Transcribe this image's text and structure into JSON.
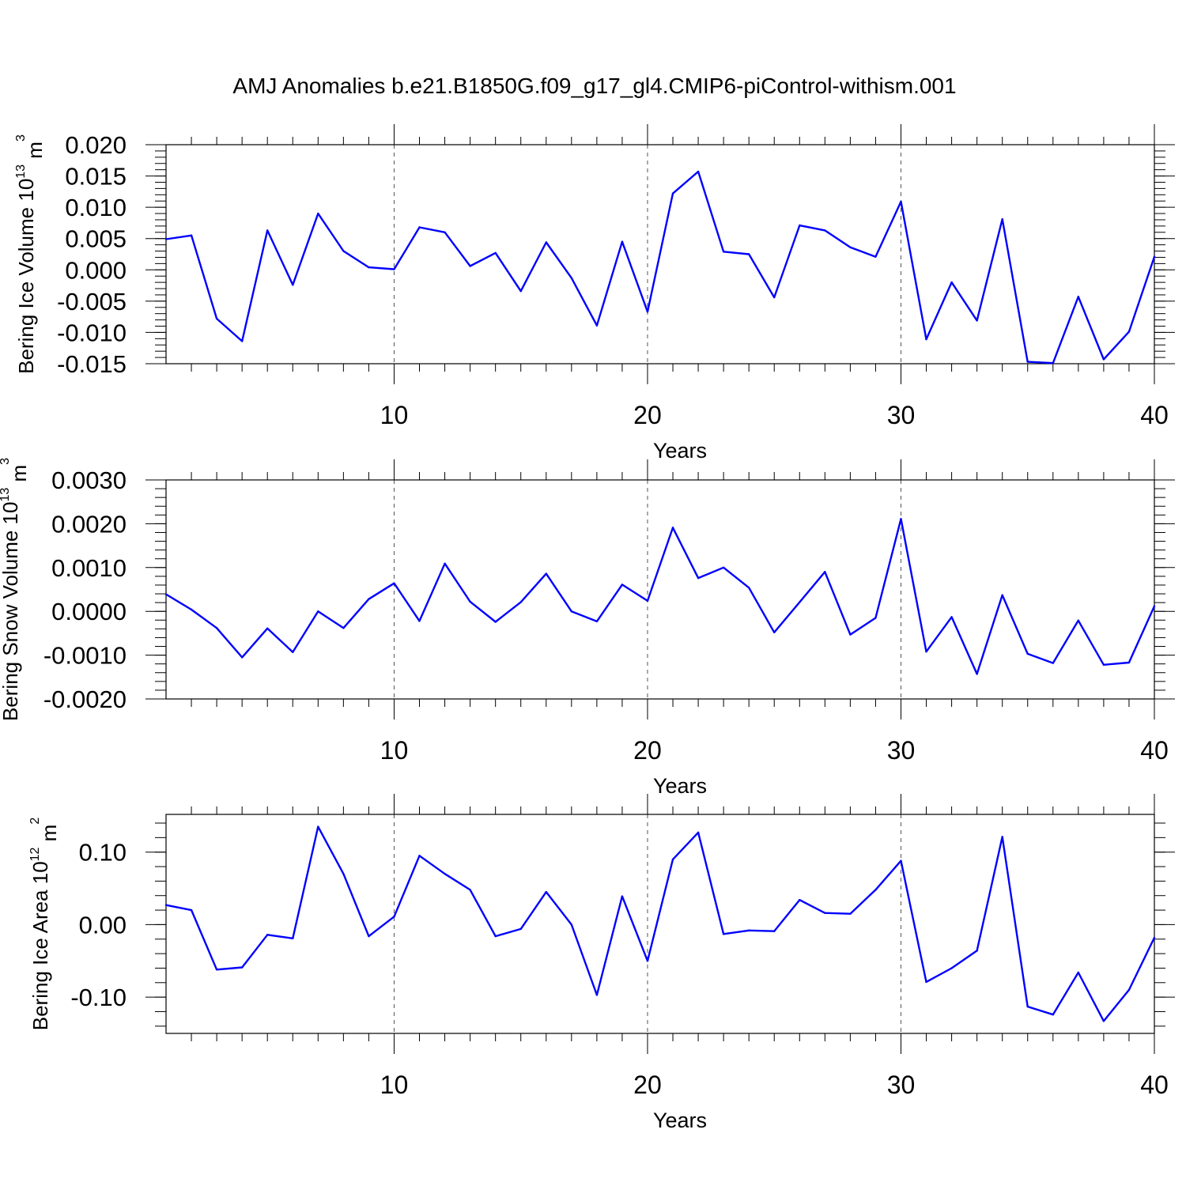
{
  "figure_title": "AMJ Anomalies b.e21.B1850G.f09_g17_gl4.CMIP6-piControl-withism.001",
  "colors": {
    "line": "#0000ff",
    "axis": "#000000",
    "grid": "#555555"
  },
  "chart_data": [
    {
      "type": "line",
      "title": "",
      "ylabel_main": "Bering Ice Volume 10",
      "ylabel_exp": "13",
      "ylabel_unit": " m",
      "ylabel_unit_exp": "3",
      "xlabel": "Years",
      "xlim": [
        1,
        40
      ],
      "ylim": [
        -0.015,
        0.02
      ],
      "x_ticks": [
        "10",
        "20",
        "30",
        "40"
      ],
      "y_ticks": [
        "-0.015",
        "-0.010",
        "-0.005",
        "0.000",
        "0.005",
        "0.010",
        "0.015",
        "0.020"
      ],
      "y_minor_step": 0.001,
      "grid_x": [
        10,
        20,
        30
      ],
      "x": [
        1,
        2,
        3,
        4,
        5,
        6,
        7,
        8,
        9,
        10,
        11,
        12,
        13,
        14,
        15,
        16,
        17,
        18,
        19,
        20,
        21,
        22,
        23,
        24,
        25,
        26,
        27,
        28,
        29,
        30,
        31,
        32,
        33,
        34,
        35,
        36,
        37,
        38,
        39,
        40
      ],
      "values": [
        0.0049,
        0.0055,
        -0.0078,
        -0.0114,
        0.0063,
        -0.0024,
        0.009,
        0.003,
        0.0004,
        0.0001,
        0.0068,
        0.006,
        0.0006,
        0.0027,
        -0.0034,
        0.0044,
        -0.0013,
        -0.0089,
        0.0045,
        -0.0067,
        0.0122,
        0.0157,
        0.0029,
        0.0025,
        -0.0044,
        0.0071,
        0.0063,
        0.0036,
        0.0021,
        0.0109,
        -0.0111,
        -0.002,
        -0.0081,
        0.0081,
        -0.0147,
        -0.0149,
        -0.0043,
        -0.0143,
        -0.0099,
        0.0021
      ]
    },
    {
      "type": "line",
      "title": "",
      "ylabel_main": "Bering Snow Volume 10",
      "ylabel_exp": "13",
      "ylabel_unit": " m",
      "ylabel_unit_exp": "3",
      "xlabel": "Years",
      "xlim": [
        1,
        40
      ],
      "ylim": [
        -0.002,
        0.003
      ],
      "x_ticks": [
        "10",
        "20",
        "30",
        "40"
      ],
      "y_ticks": [
        "-0.0020",
        "-0.0010",
        "0.0000",
        "0.0010",
        "0.0020",
        "0.0030"
      ],
      "y_minor_step": 0.0002,
      "grid_x": [
        10,
        20,
        30
      ],
      "x": [
        1,
        2,
        3,
        4,
        5,
        6,
        7,
        8,
        9,
        10,
        11,
        12,
        13,
        14,
        15,
        16,
        17,
        18,
        19,
        20,
        21,
        22,
        23,
        24,
        25,
        26,
        27,
        28,
        29,
        30,
        31,
        32,
        33,
        34,
        35,
        36,
        37,
        38,
        39,
        40
      ],
      "values": [
        0.00039,
        4e-05,
        -0.00038,
        -0.00105,
        -0.00039,
        -0.00093,
        0.0,
        -0.00038,
        0.00028,
        0.00064,
        -0.00022,
        0.00109,
        0.00022,
        -0.00024,
        0.00021,
        0.00086,
        0.0,
        -0.00023,
        0.00061,
        0.00024,
        0.00191,
        0.00076,
        0.001,
        0.00054,
        -0.00048,
        0.00021,
        0.0009,
        -0.00053,
        -0.00015,
        0.00211,
        -0.00092,
        -0.00013,
        -0.00143,
        0.00037,
        -0.00097,
        -0.00118,
        -0.00021,
        -0.00122,
        -0.00117,
        0.00012
      ]
    },
    {
      "type": "line",
      "title": "",
      "ylabel_main": "Bering Ice Area 10",
      "ylabel_exp": "12",
      "ylabel_unit": " m",
      "ylabel_unit_exp": "2",
      "xlabel": "Years",
      "xlim": [
        1,
        40
      ],
      "ylim": [
        -0.15,
        0.152
      ],
      "x_ticks": [
        "10",
        "20",
        "30",
        "40"
      ],
      "y_ticks": [
        "-0.10",
        "0.00",
        "0.10"
      ],
      "y_minor_step": 0.02,
      "grid_x": [
        10,
        20,
        30
      ],
      "x": [
        1,
        2,
        3,
        4,
        5,
        6,
        7,
        8,
        9,
        10,
        11,
        12,
        13,
        14,
        15,
        16,
        17,
        18,
        19,
        20,
        21,
        22,
        23,
        24,
        25,
        26,
        27,
        28,
        29,
        30,
        31,
        32,
        33,
        34,
        35,
        36,
        37,
        38,
        39,
        40
      ],
      "values": [
        0.027,
        0.02,
        -0.062,
        -0.059,
        -0.014,
        -0.019,
        0.135,
        0.07,
        -0.016,
        0.011,
        0.095,
        0.07,
        0.048,
        -0.016,
        -0.006,
        0.045,
        0.0,
        -0.097,
        0.039,
        -0.05,
        0.09,
        0.127,
        -0.013,
        -0.008,
        -0.009,
        0.034,
        0.016,
        0.015,
        0.048,
        0.088,
        -0.079,
        -0.06,
        -0.036,
        0.121,
        -0.113,
        -0.124,
        -0.066,
        -0.133,
        -0.09,
        -0.018
      ]
    }
  ]
}
